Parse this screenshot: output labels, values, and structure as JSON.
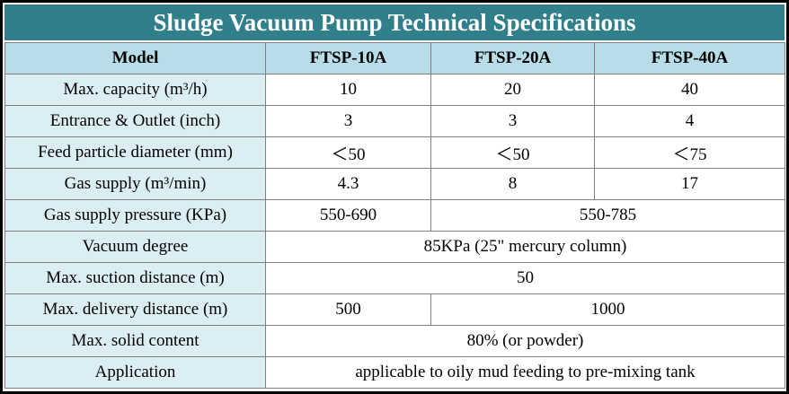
{
  "title": "Sludge Vacuum Pump Technical Specifications",
  "header": {
    "model_label": "Model",
    "models": [
      "FTSP-10A",
      "FTSP-20A",
      "FTSP-40A"
    ]
  },
  "rows": [
    {
      "label": "Max. capacity (m³/h)",
      "values": [
        "10",
        "20",
        "40"
      ]
    },
    {
      "label": "Entrance & Outlet (inch)",
      "values": [
        "3",
        "3",
        "4"
      ]
    },
    {
      "label": "Feed particle diameter (mm)",
      "values": [
        "＜50",
        "＜50",
        "＜75"
      ]
    },
    {
      "label": "Gas supply (m³/min)",
      "values": [
        "4.3",
        "8",
        "17"
      ]
    },
    {
      "label": "Gas supply pressure (KPa)",
      "values": [
        "550-690",
        "550-785"
      ]
    },
    {
      "label": "Vacuum degree",
      "values": [
        "85KPa (25\" mercury column)"
      ]
    },
    {
      "label": "Max. suction distance (m)",
      "values": [
        "50"
      ]
    },
    {
      "label": "Max. delivery distance (m)",
      "values": [
        "500",
        "1000"
      ]
    },
    {
      "label": "Max. solid content",
      "values": [
        "80% (or powder)"
      ]
    },
    {
      "label": "Application",
      "values": [
        "applicable to oily mud feeding to pre-mixing tank"
      ]
    }
  ]
}
